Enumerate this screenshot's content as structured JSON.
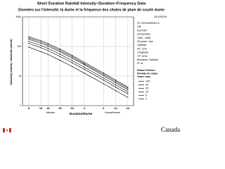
{
  "chart_data": {
    "type": "line",
    "title": "Short Duration Rainfall Intensity−Duration−Frequency Data",
    "subtitle": "Données sur l'intensité, la durée et la fréquence des chutes de pluie de courte durée",
    "date": "2012/02/29",
    "annotations": [
      "ST CATHARINES A",
      "ON",
      "6137287",
      "(composite)",
      "1954 - 2006",
      "33 years / ans",
      "Latitude:",
      "43° 11'N",
      "Longitude:",
      "79° 10'W",
      "Elevation / Altitude:",
      "97 m"
    ],
    "legend_title": [
      "Return Period /",
      "Période de retour",
      "Years / ans"
    ],
    "y_label": "Intensity (mm/h) / Intensité (mm/h)",
    "x_label": "Duration/Durée",
    "x_minutes_label": "Minutes",
    "x_hours_label": "Hours/Heures",
    "footer": "Canada",
    "x_scale": "log",
    "y_scale": "log",
    "grid": true,
    "x": [
      5,
      10,
      15,
      30,
      60,
      120,
      360,
      720,
      1440
    ],
    "xlim": [
      3.5,
      2000
    ],
    "xticks": [
      5,
      10,
      15,
      30,
      60,
      {
        "value": 120,
        "label": "2"
      },
      {
        "value": 360,
        "label": "6"
      },
      {
        "value": 720,
        "label": "12"
      },
      {
        "value": 1440,
        "label": "24"
      }
    ],
    "ylim": [
      1,
      1000
    ],
    "yticks": [
      1,
      10,
      100,
      1000
    ],
    "series": [
      {
        "name": "100",
        "color": "#000000",
        "values": [
          215,
          157,
          126,
          82,
          50,
          29,
          12.7,
          7.3,
          4.2
        ]
      },
      {
        "name": "50",
        "color": "#000000",
        "values": [
          195,
          142,
          114,
          74,
          45,
          26,
          11.5,
          6.6,
          3.8
        ]
      },
      {
        "name": "25",
        "color": "#000000",
        "values": [
          175,
          127,
          102,
          66,
          40,
          24,
          10.3,
          5.9,
          3.4
        ]
      },
      {
        "name": "10",
        "color": "#000000",
        "values": [
          148,
          107,
          86,
          55,
          33,
          20,
          8.6,
          5,
          2.9
        ]
      },
      {
        "name": "5",
        "color": "#000000",
        "values": [
          127,
          91,
          73,
          46,
          28,
          17,
          7.3,
          4.2,
          2.5
        ]
      },
      {
        "name": "2",
        "color": "#000000",
        "values": [
          95,
          67,
          54,
          34,
          21,
          12.5,
          5.5,
          3.2,
          1.9
        ]
      }
    ]
  }
}
